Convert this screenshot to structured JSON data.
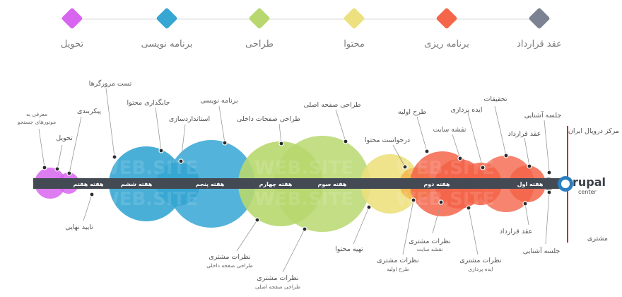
{
  "phases": [
    {
      "label": "عقد قرارداد",
      "color": "#7b8291"
    },
    {
      "label": "برنامه ریزی",
      "color": "#f4654a"
    },
    {
      "label": "محتوا",
      "color": "#ede07f"
    },
    {
      "label": "طراحی",
      "color": "#b8d86f"
    },
    {
      "label": "برنامه نویسی",
      "color": "#36a6d3"
    },
    {
      "label": "تحویل",
      "color": "#d865f0"
    }
  ],
  "weeks": [
    "هفته اول",
    "هفته دوم",
    "هفته سوم",
    "هفته چهارم",
    "هفته پنجم",
    "هفته ششم",
    "هفته هفتم"
  ],
  "side_labels": {
    "center": "مرکز دروپال ایران",
    "client": "مشتری"
  },
  "logo_text": "rupal",
  "logo_sub": "center",
  "watermark": "WEB.SITE",
  "top_annotations": {
    "intro_seo": [
      "معرفی به",
      "موتورهای جستجو"
    ],
    "delivery": "تحویل",
    "config": "پیکربندی",
    "browser_test": "تست مرورگرها",
    "content_placement": "جایگذاری محتوا",
    "standardization": "استانداردسازی",
    "programming": "برنامه نویسی",
    "inner_pages": "طراحی صفحات داخلی",
    "main_page": "طراحی صفحه اصلی",
    "content_request": "درخواست محتوا",
    "initial_design": "طرح اولیه",
    "sitemap": "نقشه سایت",
    "ideation": "ایده پردازی",
    "research": "تحقیقات",
    "contract": "عقد قرارداد",
    "meeting": "جلسه آشنایی"
  },
  "bottom_annotations": {
    "final_approval": "تایید نهایی",
    "feedback_inner": [
      "نظرات مشتری",
      "طراحی صفحه داخلی"
    ],
    "feedback_main": [
      "نظرات مشتری",
      "طراحی صفحه اصلی"
    ],
    "content_prep": "تهیه محتوا",
    "feedback_initial": [
      "نظرات مشتری",
      "طرح اولیه"
    ],
    "feedback_sitemap": [
      "نظرات مشتری",
      "نقشه سایت"
    ],
    "feedback_ideation": [
      "نظرات مشتری",
      "ایده پردازی"
    ],
    "contract": "عقد قرارداد",
    "meeting": "جلسه آشنایی"
  }
}
